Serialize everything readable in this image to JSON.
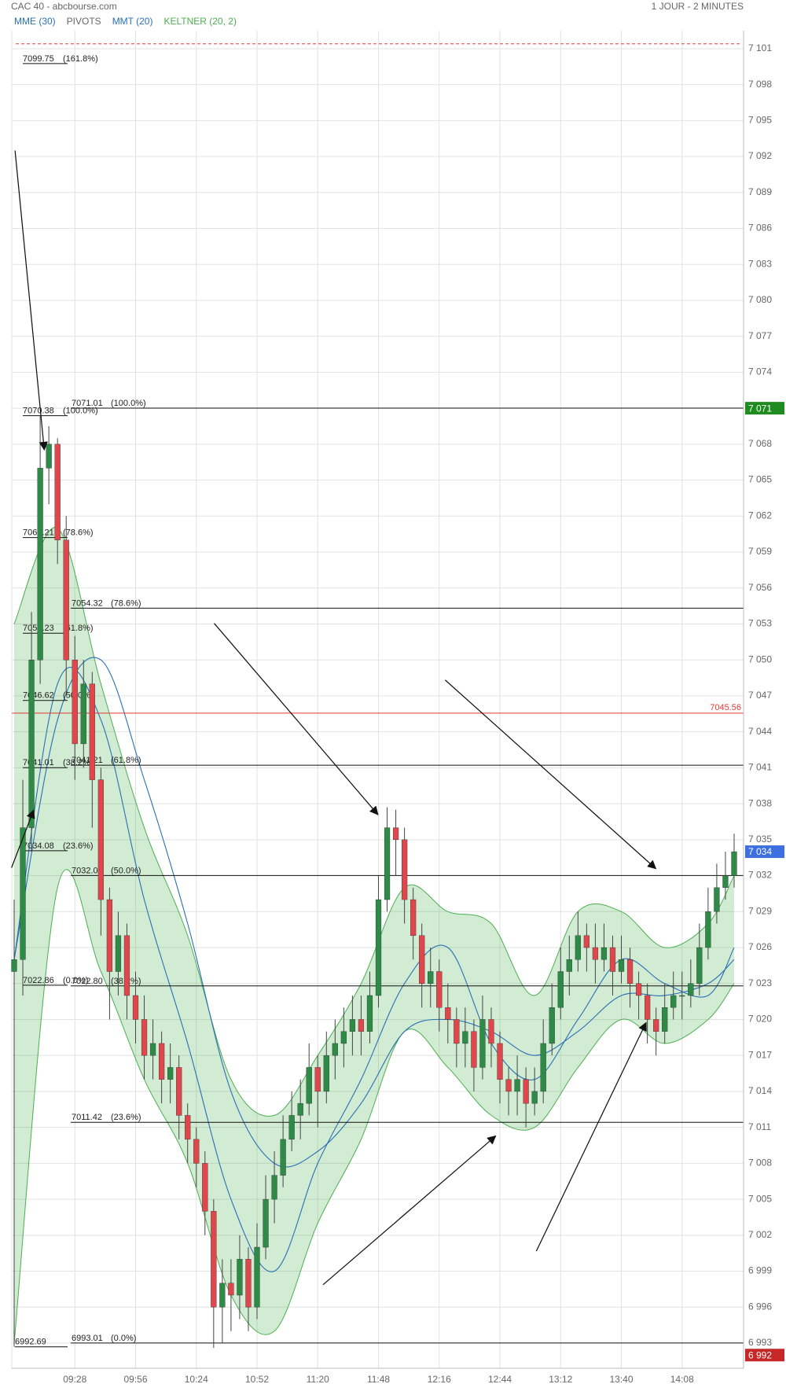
{
  "chart_data": {
    "type": "candlestick",
    "title": "CAC 40 - abcbourse.com",
    "subtitle": "1 JOUR - 2 MINUTES",
    "up_color": "#2e8b47",
    "down_color": "#e0474c",
    "x": [
      "09:00",
      "09:04",
      "09:08",
      "09:12",
      "09:16",
      "09:20",
      "09:24",
      "09:28",
      "09:32",
      "09:36",
      "09:40",
      "09:44",
      "09:48",
      "09:52",
      "09:56",
      "10:00",
      "10:04",
      "10:08",
      "10:12",
      "10:16",
      "10:20",
      "10:24",
      "10:28",
      "10:32",
      "10:36",
      "10:40",
      "10:44",
      "10:48",
      "10:52",
      "10:56",
      "11:00",
      "11:04",
      "11:08",
      "11:12",
      "11:16",
      "11:20",
      "11:24",
      "11:28",
      "11:32",
      "11:36",
      "11:40",
      "11:44",
      "11:48",
      "11:52",
      "11:56",
      "12:00",
      "12:04",
      "12:08",
      "12:12",
      "12:16",
      "12:20",
      "12:24",
      "12:28",
      "12:32",
      "12:36",
      "12:40",
      "12:44",
      "12:48",
      "12:52",
      "12:56",
      "13:00",
      "13:04",
      "13:08",
      "13:12",
      "13:16",
      "13:20",
      "13:24",
      "13:28",
      "13:32",
      "13:36",
      "13:40",
      "13:44",
      "13:48",
      "13:52",
      "13:56",
      "14:00",
      "14:04",
      "14:08",
      "14:12",
      "14:16",
      "14:20",
      "14:24",
      "14:28",
      "14:32"
    ],
    "open": [
      7024,
      7025,
      7036,
      7050,
      7066,
      7068,
      7060,
      7050,
      7043,
      7048,
      7040,
      7030,
      7024,
      7027,
      7022,
      7020,
      7017,
      7018,
      7015,
      7016,
      7012,
      7010,
      7008,
      7004,
      6996,
      6998,
      6997,
      7000,
      6996,
      7001,
      7005,
      7007,
      7010,
      7012,
      7013,
      7016,
      7014,
      7017,
      7018,
      7019,
      7020,
      7019,
      7022,
      7030,
      7036,
      7035,
      7030,
      7027,
      7023,
      7024,
      7021,
      7020,
      7018,
      7019,
      7016,
      7020,
      7018,
      7015,
      7014,
      7015,
      7013,
      7014,
      7018,
      7021,
      7024,
      7025,
      7027,
      7026,
      7025,
      7026,
      7024,
      7025,
      7023,
      7022,
      7020,
      7019,
      7021,
      7022,
      7022,
      7023,
      7026,
      7029,
      7031,
      7032
    ],
    "high": [
      7030,
      7040,
      7054,
      7070.4,
      7069.5,
      7068.5,
      7062,
      7052,
      7050,
      7049,
      7041,
      7031,
      7029,
      7028,
      7024,
      7022,
      7020,
      7019,
      7018,
      7017,
      7013,
      7011,
      7009,
      7005,
      7000,
      7000,
      7002,
      7001,
      7003,
      7007,
      7009,
      7012,
      7014,
      7015,
      7018,
      7017,
      7019,
      7020,
      7021,
      7022,
      7022,
      7024,
      7032,
      7037.7,
      7037.5,
      7036,
      7031,
      7028,
      7026,
      7025,
      7023,
      7021,
      7021,
      7020,
      7022,
      7021,
      7019,
      7016,
      7017,
      7016,
      7016,
      7020,
      7023,
      7026,
      7027,
      7029,
      7028,
      7028,
      7028,
      7027,
      7027,
      7026,
      7024,
      7023,
      7021,
      7023,
      7024,
      7024,
      7025,
      7028,
      7031,
      7033,
      7034,
      7035.5
    ],
    "low": [
      6992.7,
      7022,
      7034,
      7048,
      7063,
      7058,
      7047,
      7040,
      7041,
      7036,
      7027,
      7020,
      7022,
      7020,
      7018,
      7015,
      7015,
      7013,
      7013,
      7010,
      7008,
      7006,
      7002,
      6992.6,
      6993,
      6994,
      6995,
      6994,
      6995,
      7000,
      7003,
      7006,
      7009,
      7010,
      7012,
      7011,
      7013,
      7015,
      7016,
      7017,
      7017,
      7018,
      7021,
      7029,
      7032,
      7028,
      7025,
      7021,
      7021,
      7019,
      7018,
      7016,
      7016,
      7014,
      7015,
      7016,
      7013,
      7012,
      7012,
      7011,
      7012,
      7013,
      7017,
      7020,
      7022,
      7024,
      7024,
      7023,
      7024,
      7022,
      7023,
      7021,
      7020,
      7018,
      7017,
      7018,
      7020,
      7020,
      7021,
      7022,
      7025,
      7028,
      7030,
      7031
    ],
    "close": [
      7025,
      7036,
      7050,
      7066,
      7068,
      7060,
      7050,
      7043,
      7048,
      7040,
      7030,
      7024,
      7027,
      7022,
      7020,
      7017,
      7018,
      7015,
      7016,
      7012,
      7010,
      7008,
      7004,
      6996,
      6998,
      6997,
      7000,
      6996,
      7001,
      7005,
      7007,
      7010,
      7012,
      7013,
      7016,
      7014,
      7017,
      7018,
      7019,
      7020,
      7019,
      7022,
      7030,
      7036,
      7035,
      7030,
      7027,
      7023,
      7024,
      7021,
      7020,
      7018,
      7019,
      7016,
      7020,
      7018,
      7015,
      7014,
      7015,
      7013,
      7014,
      7018,
      7021,
      7024,
      7025,
      7027,
      7026,
      7025,
      7026,
      7024,
      7025,
      7023,
      7022,
      7020,
      7019,
      7021,
      7022,
      7022,
      7023,
      7026,
      7029,
      7031,
      7032,
      7034
    ],
    "indicators": {
      "x": [
        "09:00",
        "09:20",
        "09:40",
        "10:00",
        "10:20",
        "10:40",
        "11:00",
        "11:20",
        "11:40",
        "12:00",
        "12:20",
        "12:40",
        "13:00",
        "13:20",
        "13:40",
        "14:00",
        "14:20",
        "14:32"
      ],
      "series": [
        {
          "name": "MME (30)",
          "color": "#2a6fb5",
          "values": [
            7025,
            7045,
            7050,
            7040,
            7028,
            7014,
            7008,
            7009,
            7013,
            7019,
            7020,
            7019,
            7017,
            7019,
            7022,
            7022,
            7023,
            7025
          ]
        },
        {
          "name": "PIVOTS",
          "color": "#666666"
        },
        {
          "name": "MMT (20)",
          "color": "#2a6fb5",
          "values": [
            7025,
            7048,
            7045,
            7030,
            7018,
            7005,
            6999,
            7008,
            7015,
            7023,
            7026,
            7018,
            7015,
            7020,
            7025,
            7023,
            7022,
            7026
          ]
        },
        {
          "name": "KELTNER (20, 2)",
          "color": "#4caf50",
          "upper": [
            7053,
            7061,
            7048,
            7036,
            7027,
            7015,
            7012,
            7017,
            7023,
            7031,
            7029,
            7028,
            7022,
            7029,
            7029,
            7026,
            7028,
            7032
          ],
          "lower": [
            6993,
            7031,
            7024,
            7015,
            7008,
            6997,
            6994,
            7003,
            7010,
            7019,
            7016,
            7012,
            7011,
            7016,
            7020,
            7018,
            7020,
            7023
          ]
        }
      ]
    },
    "ylim": [
      6990.9,
      7102.5
    ],
    "yticks": [
      {
        "value": 6993,
        "label": "6 993"
      },
      {
        "value": 6996,
        "label": "6 996"
      },
      {
        "value": 6999,
        "label": "6 999"
      },
      {
        "value": 7002,
        "label": "7 002"
      },
      {
        "value": 7005,
        "label": "7 005"
      },
      {
        "value": 7008,
        "label": "7 008"
      },
      {
        "value": 7011,
        "label": "7 011"
      },
      {
        "value": 7014,
        "label": "7 014"
      },
      {
        "value": 7017,
        "label": "7 017"
      },
      {
        "value": 7020,
        "label": "7 020"
      },
      {
        "value": 7023,
        "label": "7 023"
      },
      {
        "value": 7026,
        "label": "7 026"
      },
      {
        "value": 7029,
        "label": "7 029"
      },
      {
        "value": 7032,
        "label": "7 032"
      },
      {
        "value": 7035,
        "label": "7 035"
      },
      {
        "value": 7038,
        "label": "7 038"
      },
      {
        "value": 7041,
        "label": "7 041"
      },
      {
        "value": 7044,
        "label": "7 044"
      },
      {
        "value": 7047,
        "label": "7 047"
      },
      {
        "value": 7050,
        "label": "7 050"
      },
      {
        "value": 7053,
        "label": "7 053"
      },
      {
        "value": 7056,
        "label": "7 056"
      },
      {
        "value": 7059,
        "label": "7 059"
      },
      {
        "value": 7062,
        "label": "7 062"
      },
      {
        "value": 7065,
        "label": "7 065"
      },
      {
        "value": 7068,
        "label": "7 068"
      },
      {
        "value": 7071,
        "label": "7 071"
      },
      {
        "value": 7074,
        "label": "7 074"
      },
      {
        "value": 7077,
        "label": "7 077"
      },
      {
        "value": 7080,
        "label": "7 080"
      },
      {
        "value": 7083,
        "label": "7 083"
      },
      {
        "value": 7086,
        "label": "7 086"
      },
      {
        "value": 7089,
        "label": "7 089"
      },
      {
        "value": 7092,
        "label": "7 092"
      },
      {
        "value": 7095,
        "label": "7 095"
      },
      {
        "value": 7098,
        "label": "7 098"
      },
      {
        "value": 7101,
        "label": "7 101"
      }
    ],
    "xticks": [
      "09:28",
      "09:56",
      "10:24",
      "10:52",
      "11:20",
      "11:48",
      "12:16",
      "12:44",
      "13:12",
      "13:40",
      "14:08"
    ],
    "grid": true,
    "fib_short": [
      {
        "value": 7099.75,
        "label": "7099.75",
        "ratio": "(161.8%)"
      },
      {
        "value": 7070.38,
        "label": "7070.38",
        "ratio": "(100.0%)"
      },
      {
        "value": 7060.21,
        "label": "7060.21",
        "ratio": "(78.6%)"
      },
      {
        "value": 7052.23,
        "label": "7052.23",
        "ratio": "(61.8%)"
      },
      {
        "value": 7046.62,
        "label": "7046.62",
        "ratio": "(50.0%)"
      },
      {
        "value": 7041.01,
        "label": "7041.01",
        "ratio": "(38.2%)"
      },
      {
        "value": 7034.08,
        "label": "7034.08",
        "ratio": "(23.6%)"
      },
      {
        "value": 7022.86,
        "label": "7022.86",
        "ratio": "(0.0%)"
      },
      {
        "value": 6992.69,
        "label": "6992.69"
      }
    ],
    "fib_long": [
      {
        "value": 7071.01,
        "label": "7071.01",
        "ratio": "(100.0%)"
      },
      {
        "value": 7054.32,
        "label": "7054.32",
        "ratio": "(78.6%)"
      },
      {
        "value": 7041.21,
        "label": "7041.21",
        "ratio": "(61.8%)"
      },
      {
        "value": 7032.01,
        "label": "7032.01",
        "ratio": "(50.0%)"
      },
      {
        "value": 7022.8,
        "label": "7022.80",
        "ratio": "(38.2%)"
      },
      {
        "value": 7011.42,
        "label": "7011.42",
        "ratio": "(23.6%)"
      },
      {
        "value": 6993.01,
        "label": "6993.01",
        "ratio": "(0.0%)"
      }
    ],
    "pivot_line": {
      "value": 7045.56,
      "color": "#e53935"
    },
    "dashed_line": {
      "value": 7101.4,
      "color": "#e53935"
    },
    "price_badges": [
      {
        "value": 7071,
        "label": "7 071",
        "color": "#1e8c1e"
      },
      {
        "value": 7034,
        "label": "7 034",
        "color": "#3d6fe0"
      },
      {
        "value": 6992,
        "label": "6 992",
        "color": "#c62828"
      }
    ]
  }
}
